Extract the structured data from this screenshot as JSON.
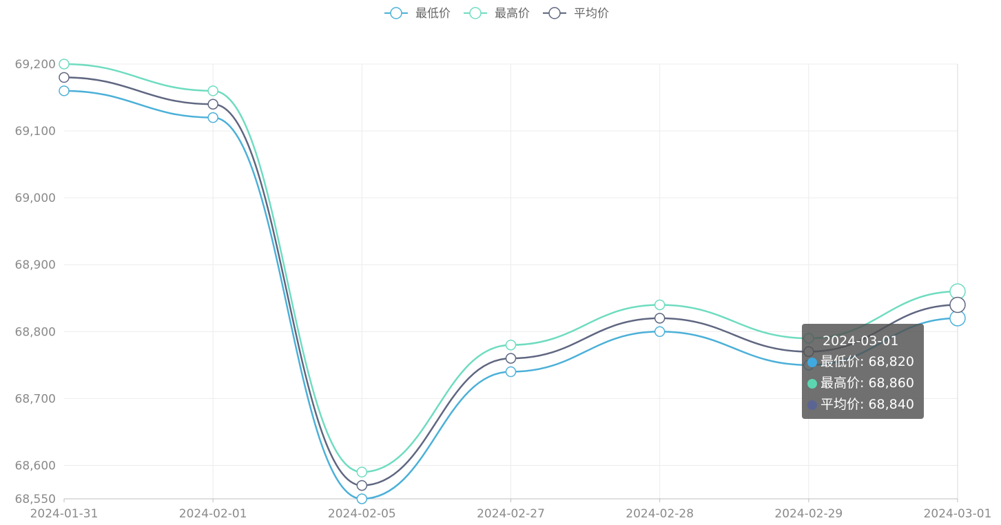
{
  "legend": {
    "items": [
      {
        "label": "最低价",
        "color": "#4bb0d8"
      },
      {
        "label": "最高价",
        "color": "#6edcc0"
      },
      {
        "label": "平均价",
        "color": "#5f6680"
      }
    ]
  },
  "chart_data": {
    "type": "line",
    "categories": [
      "2024-01-31",
      "2024-02-01",
      "2024-02-05",
      "2024-02-27",
      "2024-02-28",
      "2024-02-29",
      "2024-03-01"
    ],
    "series": [
      {
        "name": "最低价",
        "color": "#4bb0d8",
        "values": [
          69160,
          69120,
          68550,
          68740,
          68800,
          68750,
          68820
        ]
      },
      {
        "name": "最高价",
        "color": "#6edcc0",
        "values": [
          69200,
          69160,
          68590,
          68780,
          68840,
          68790,
          68860
        ]
      },
      {
        "name": "平均价",
        "color": "#5f6680",
        "values": [
          69180,
          69140,
          68570,
          68760,
          68820,
          68770,
          68840
        ]
      }
    ],
    "y_ticks": [
      "68,550",
      "68,600",
      "68,700",
      "68,800",
      "68,900",
      "69,000",
      "69,100",
      "69,200"
    ],
    "ylim": [
      68550,
      69200
    ],
    "smooth": true,
    "grid": true,
    "legend_position": "top-center"
  },
  "tooltip": {
    "title": "2024-03-01",
    "rows": [
      {
        "label": "最低价: 68,820",
        "color": "#3fa9e0"
      },
      {
        "label": "最高价: 68,860",
        "color": "#5cd6b0"
      },
      {
        "label": "平均价: 68,840",
        "color": "#5b6593"
      }
    ]
  }
}
